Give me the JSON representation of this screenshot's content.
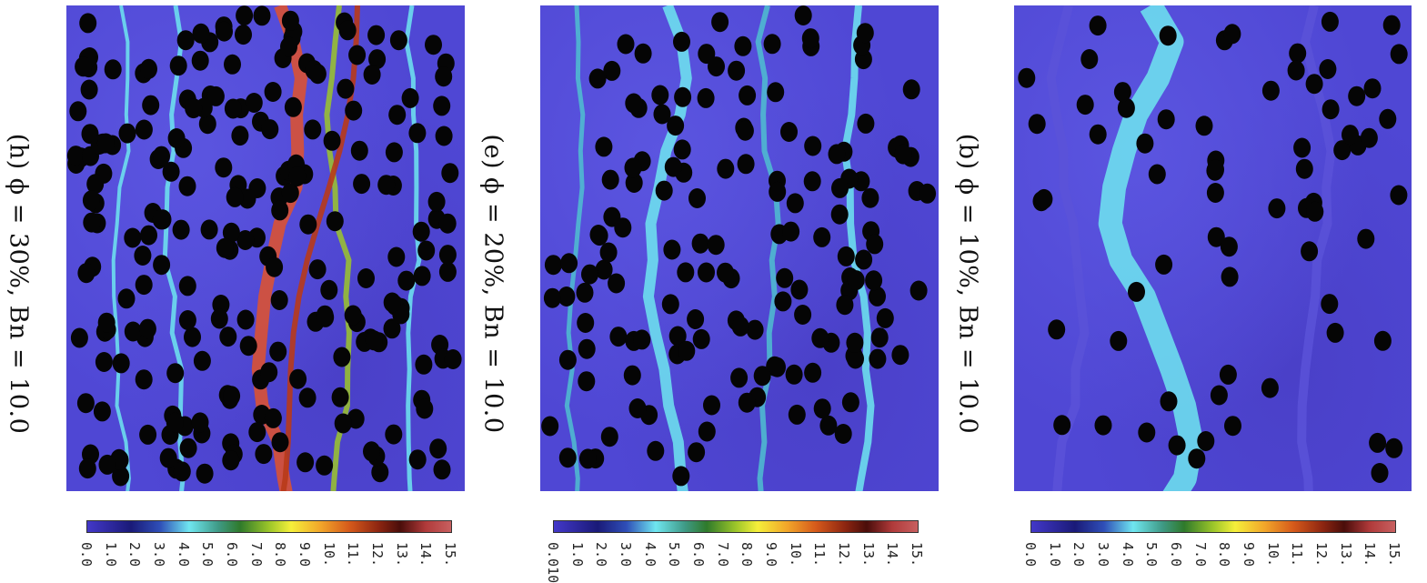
{
  "panels": [
    {
      "label": "(h) ϕ = 30%, Bn = 10.0",
      "density": "high"
    },
    {
      "label": "(e) ϕ = 20%, Bn = 10.0",
      "density": "medium"
    },
    {
      "label": "(b) ϕ = 10%, Bn = 10.0",
      "density": "low"
    }
  ],
  "colorbars": [
    {
      "ticks": [
        "0.0",
        "1.0",
        "2.0",
        "3.0",
        "4.0",
        "5.0",
        "6.0",
        "7.0",
        "8.0",
        "9.0",
        "10.",
        "11.",
        "12.",
        "13.",
        "14.",
        "15."
      ]
    },
    {
      "ticks": [
        "0.010",
        "1.0",
        "2.0",
        "3.0",
        "4.0",
        "5.0",
        "6.0",
        "7.0",
        "8.0",
        "9.0",
        "10.",
        "11.",
        "12.",
        "13.",
        "14.",
        "15."
      ]
    },
    {
      "ticks": [
        "0.0",
        "1.0",
        "2.0",
        "3.0",
        "4.0",
        "5.0",
        "6.0",
        "7.0",
        "8.0",
        "9.0",
        "10.",
        "11.",
        "12.",
        "13.",
        "14.",
        "15."
      ]
    }
  ],
  "colors": {
    "field_background": "#4f47d4",
    "particle": "#050505",
    "channel_low": "#6fe6f0",
    "channel_mid": "#9cc62a",
    "channel_high": "#d65a1b"
  }
}
